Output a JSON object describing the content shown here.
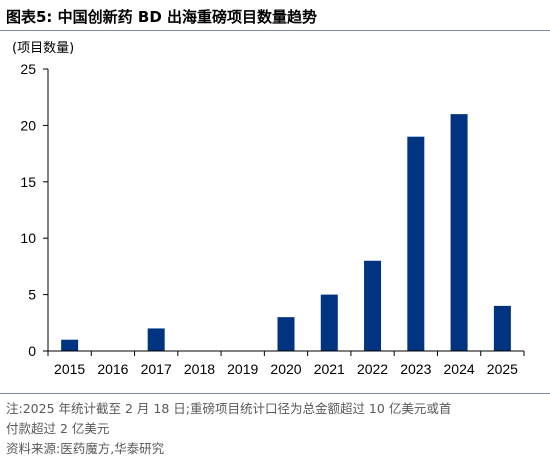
{
  "title": "图表5:  中国创新药 BD 出海重磅项目数量趋势",
  "unit_label": "(项目数量)",
  "chart_data": {
    "type": "bar",
    "categories": [
      "2015",
      "2016",
      "2017",
      "2018",
      "2019",
      "2020",
      "2021",
      "2022",
      "2023",
      "2024",
      "2025"
    ],
    "values": [
      1,
      0,
      2,
      0,
      0,
      3,
      5,
      8,
      19,
      21,
      4
    ],
    "ylabel": "(项目数量)",
    "xlabel": "",
    "ylim": [
      0,
      25
    ],
    "yticks": [
      0,
      5,
      10,
      15,
      20,
      25
    ],
    "grid": false,
    "bar_color": "#003380"
  },
  "notes": {
    "line1": "注:2025 年统计截至 2 月 18 日;重磅项目统计口径为总金额超过 10 亿美元或首",
    "line2": "付款超过 2 亿美元",
    "source": "资料来源:医药魔方,华泰研究"
  }
}
